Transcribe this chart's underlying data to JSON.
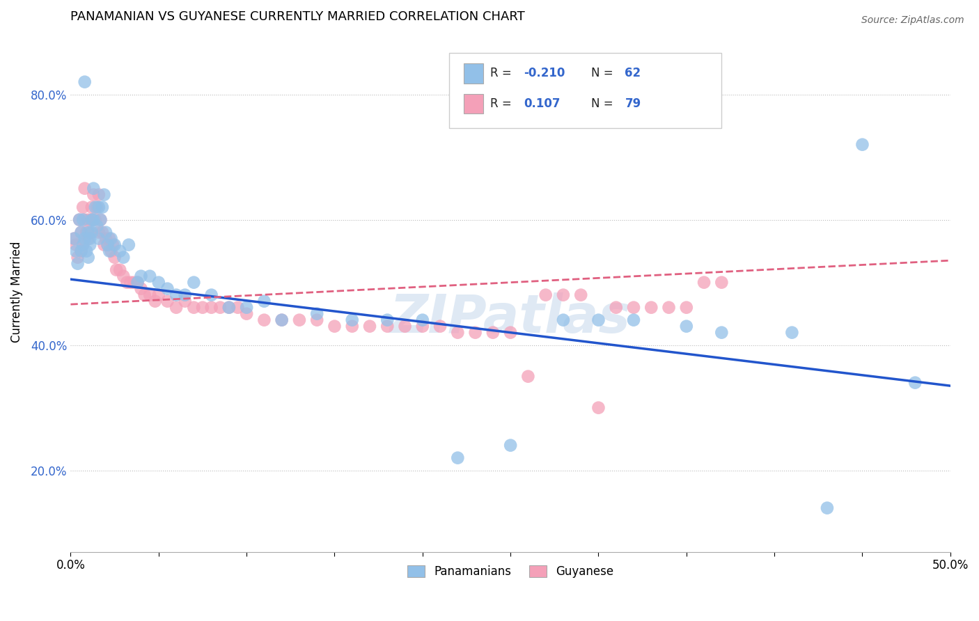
{
  "title": "PANAMANIAN VS GUYANESE CURRENTLY MARRIED CORRELATION CHART",
  "source": "Source: ZipAtlas.com",
  "ylabel": "Currently Married",
  "xlim": [
    0.0,
    0.5
  ],
  "ylim": [
    0.07,
    0.9
  ],
  "xticks": [
    0.0,
    0.05,
    0.1,
    0.15,
    0.2,
    0.25,
    0.3,
    0.35,
    0.4,
    0.45,
    0.5
  ],
  "xticklabels": [
    "0.0%",
    "",
    "",
    "",
    "",
    "",
    "",
    "",
    "",
    "",
    "50.0%"
  ],
  "yticks": [
    0.2,
    0.4,
    0.6,
    0.8
  ],
  "yticklabels": [
    "20.0%",
    "40.0%",
    "60.0%",
    "80.0%"
  ],
  "blue_color": "#92C0E8",
  "pink_color": "#F4A0B8",
  "blue_line_color": "#2255CC",
  "pink_line_color": "#E06080",
  "watermark": "ZIPatlas",
  "watermark_color": "#C5D8EC",
  "background_color": "#FFFFFF",
  "blue_scatter_x": [
    0.002,
    0.003,
    0.004,
    0.005,
    0.006,
    0.006,
    0.007,
    0.007,
    0.008,
    0.008,
    0.009,
    0.01,
    0.01,
    0.011,
    0.011,
    0.012,
    0.012,
    0.013,
    0.013,
    0.014,
    0.015,
    0.016,
    0.016,
    0.017,
    0.018,
    0.019,
    0.02,
    0.021,
    0.022,
    0.023,
    0.025,
    0.028,
    0.03,
    0.033,
    0.038,
    0.04,
    0.045,
    0.05,
    0.055,
    0.06,
    0.065,
    0.07,
    0.08,
    0.09,
    0.1,
    0.11,
    0.12,
    0.14,
    0.16,
    0.18,
    0.2,
    0.22,
    0.25,
    0.28,
    0.3,
    0.32,
    0.35,
    0.37,
    0.41,
    0.43,
    0.45,
    0.48
  ],
  "blue_scatter_y": [
    0.57,
    0.55,
    0.53,
    0.6,
    0.55,
    0.58,
    0.56,
    0.6,
    0.82,
    0.57,
    0.55,
    0.54,
    0.58,
    0.56,
    0.57,
    0.58,
    0.6,
    0.6,
    0.65,
    0.62,
    0.59,
    0.57,
    0.62,
    0.6,
    0.62,
    0.64,
    0.58,
    0.56,
    0.55,
    0.57,
    0.56,
    0.55,
    0.54,
    0.56,
    0.5,
    0.51,
    0.51,
    0.5,
    0.49,
    0.48,
    0.48,
    0.5,
    0.48,
    0.46,
    0.46,
    0.47,
    0.44,
    0.45,
    0.44,
    0.44,
    0.44,
    0.22,
    0.24,
    0.44,
    0.44,
    0.44,
    0.43,
    0.42,
    0.42,
    0.14,
    0.72,
    0.34
  ],
  "pink_scatter_x": [
    0.002,
    0.003,
    0.004,
    0.005,
    0.006,
    0.006,
    0.007,
    0.007,
    0.008,
    0.008,
    0.009,
    0.01,
    0.01,
    0.011,
    0.012,
    0.012,
    0.013,
    0.014,
    0.015,
    0.016,
    0.016,
    0.017,
    0.018,
    0.019,
    0.02,
    0.021,
    0.022,
    0.023,
    0.024,
    0.025,
    0.026,
    0.028,
    0.03,
    0.032,
    0.034,
    0.036,
    0.038,
    0.04,
    0.042,
    0.045,
    0.048,
    0.05,
    0.055,
    0.06,
    0.065,
    0.07,
    0.075,
    0.08,
    0.085,
    0.09,
    0.095,
    0.1,
    0.11,
    0.12,
    0.13,
    0.14,
    0.15,
    0.16,
    0.17,
    0.18,
    0.19,
    0.2,
    0.21,
    0.22,
    0.23,
    0.24,
    0.25,
    0.26,
    0.27,
    0.28,
    0.29,
    0.3,
    0.31,
    0.32,
    0.33,
    0.34,
    0.35,
    0.36,
    0.37
  ],
  "pink_scatter_y": [
    0.57,
    0.56,
    0.54,
    0.6,
    0.55,
    0.58,
    0.56,
    0.62,
    0.6,
    0.65,
    0.58,
    0.57,
    0.6,
    0.58,
    0.6,
    0.62,
    0.64,
    0.6,
    0.62,
    0.58,
    0.64,
    0.6,
    0.58,
    0.56,
    0.57,
    0.56,
    0.57,
    0.55,
    0.56,
    0.54,
    0.52,
    0.52,
    0.51,
    0.5,
    0.5,
    0.5,
    0.5,
    0.49,
    0.48,
    0.48,
    0.47,
    0.48,
    0.47,
    0.46,
    0.47,
    0.46,
    0.46,
    0.46,
    0.46,
    0.46,
    0.46,
    0.45,
    0.44,
    0.44,
    0.44,
    0.44,
    0.43,
    0.43,
    0.43,
    0.43,
    0.43,
    0.43,
    0.43,
    0.42,
    0.42,
    0.42,
    0.42,
    0.35,
    0.48,
    0.48,
    0.48,
    0.3,
    0.46,
    0.46,
    0.46,
    0.46,
    0.46,
    0.5,
    0.5
  ],
  "blue_trend_x": [
    0.0,
    0.5
  ],
  "blue_trend_y": [
    0.505,
    0.335
  ],
  "pink_trend_x": [
    0.0,
    0.5
  ],
  "pink_trend_y": [
    0.465,
    0.535
  ]
}
